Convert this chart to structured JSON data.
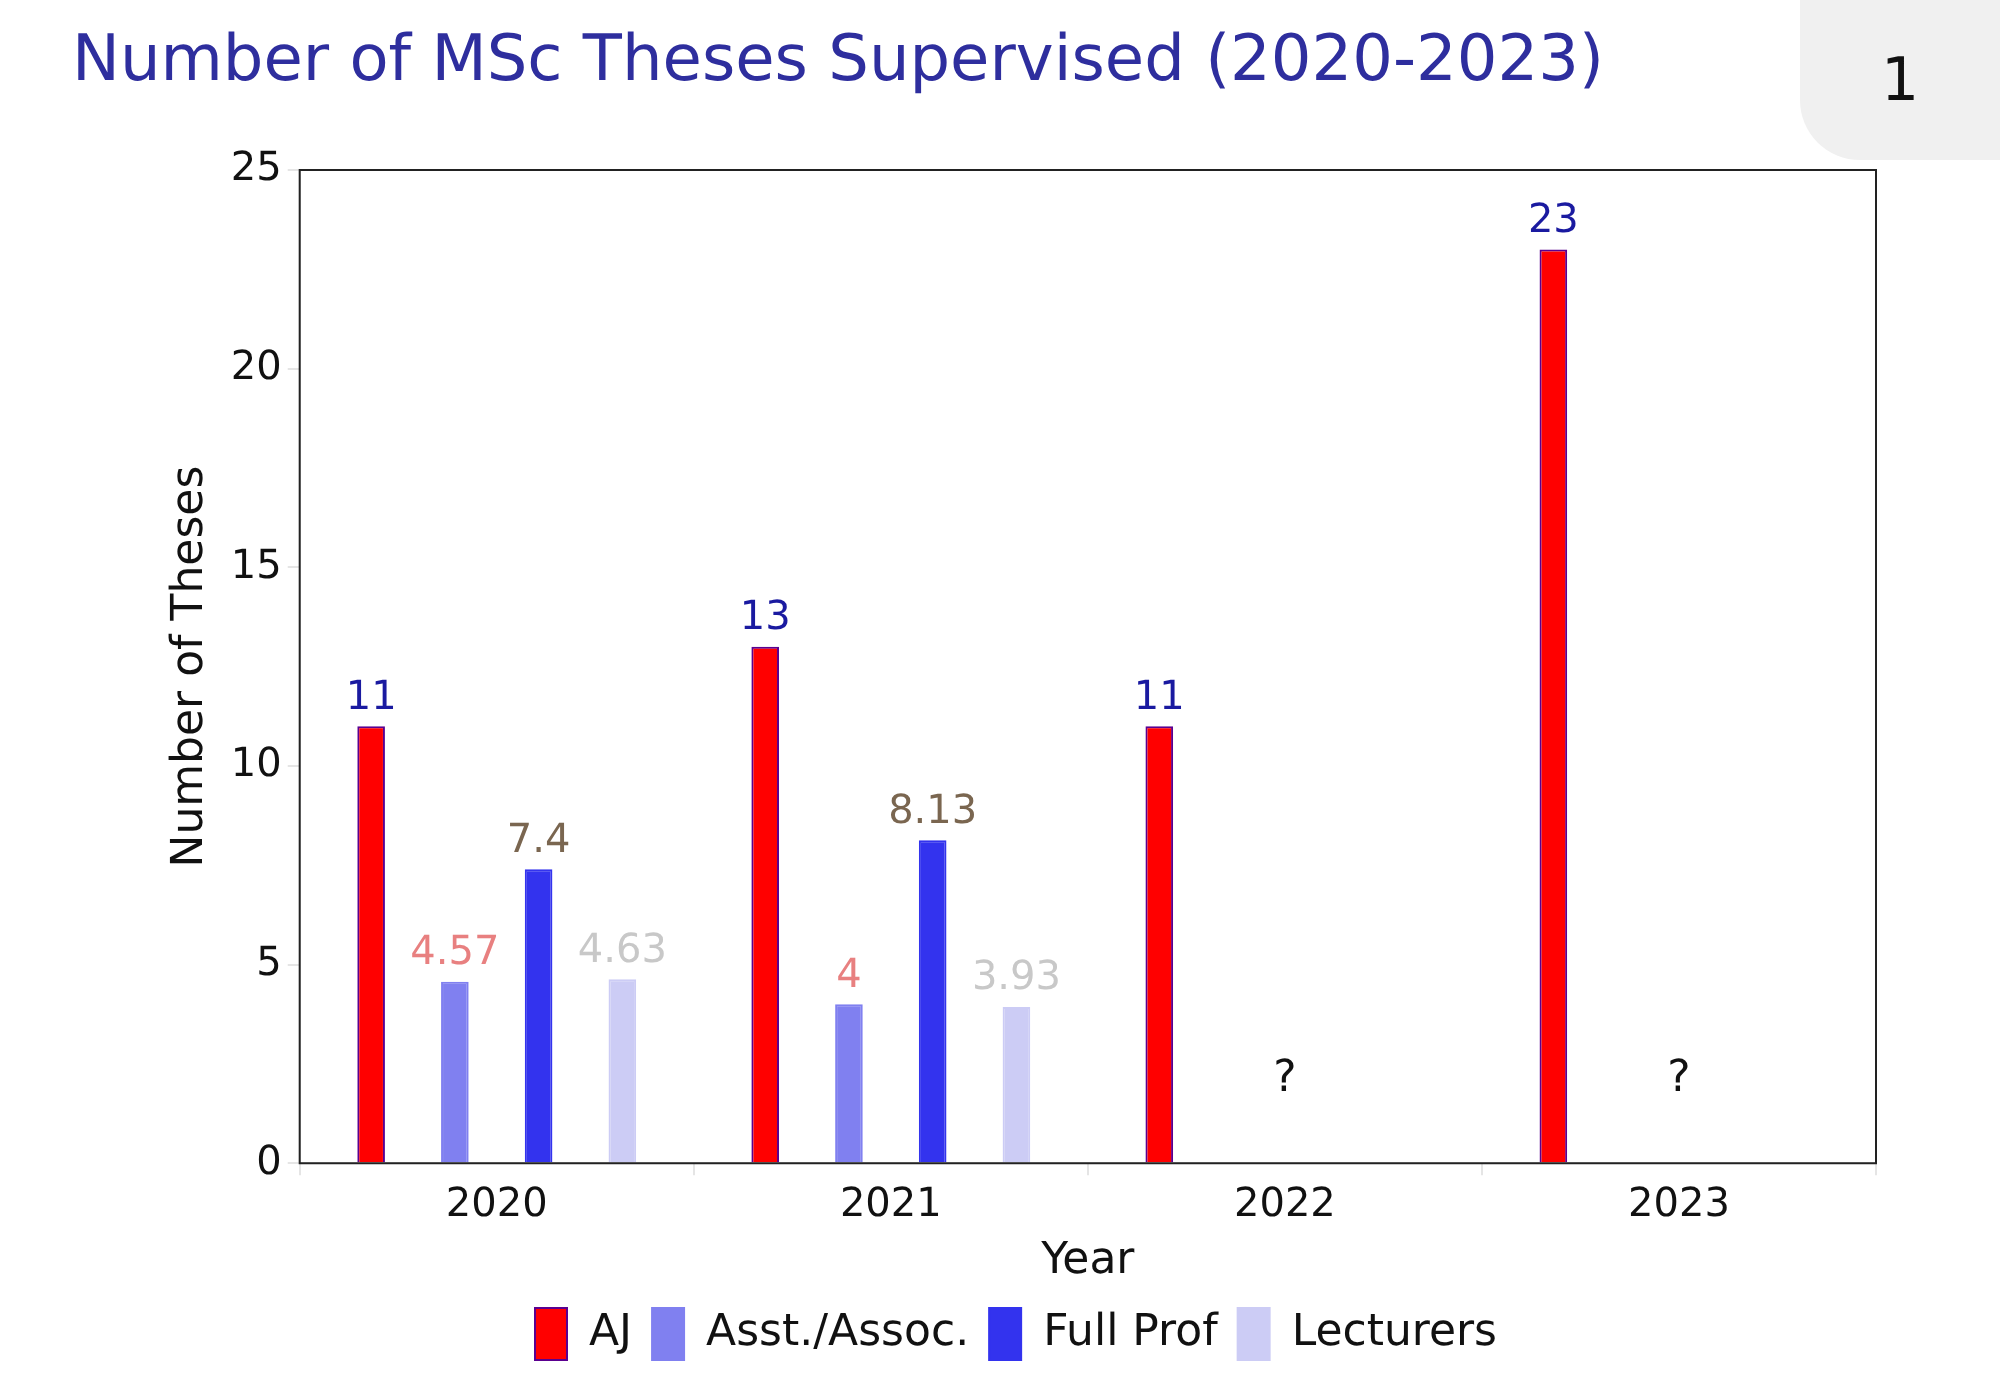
{
  "chart_data": {
    "type": "bar",
    "title": "Number of MSc Theses Supervised (2020-2023)",
    "xlabel": "Year",
    "ylabel": "Number of Theses",
    "categories": [
      "2020",
      "2021",
      "2022",
      "2023"
    ],
    "series": [
      {
        "name": "AJ",
        "color": "#ff0000",
        "values": [
          11,
          13,
          11,
          23
        ]
      },
      {
        "name": "Asst./Assoc.",
        "color": "#8080f0",
        "values": [
          4.57,
          4,
          null,
          null
        ]
      },
      {
        "name": "Full Prof",
        "color": "#3333ee",
        "values": [
          7.4,
          8.13,
          null,
          null
        ]
      },
      {
        "name": "Lecturers",
        "color": "#ccccf5",
        "values": [
          4.63,
          3.93,
          null,
          null
        ]
      }
    ],
    "ylim": [
      0,
      25
    ],
    "yticks": [
      0,
      5,
      10,
      15,
      20,
      25
    ],
    "grid": false,
    "legend": "bottom",
    "data_labels": true,
    "annotations": [
      "?",
      "?",
      "1"
    ]
  }
}
